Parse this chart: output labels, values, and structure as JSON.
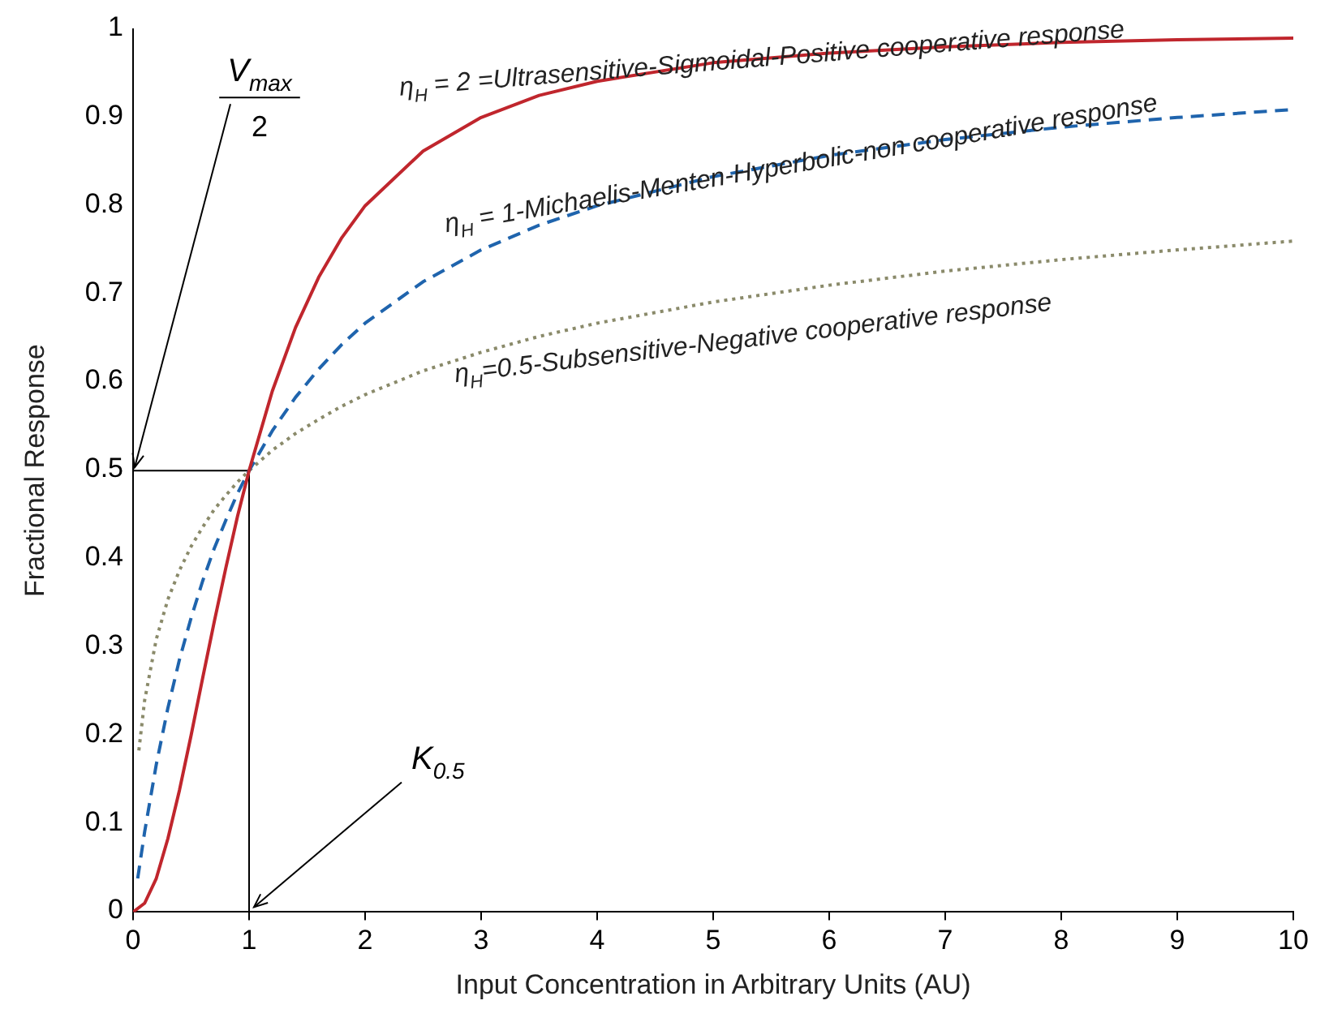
{
  "chart_data": {
    "type": "line",
    "xlabel": "Input Concentration in Arbitrary Units (AU)",
    "ylabel": "Fractional Response",
    "xlim": [
      0,
      10
    ],
    "xticks": [
      0,
      1,
      2,
      3,
      4,
      5,
      6,
      7,
      8,
      9,
      10
    ],
    "ylim": [
      0,
      1
    ],
    "yticks": [
      0,
      0.1,
      0.2,
      0.3,
      0.4,
      0.5,
      0.6,
      0.7,
      0.8,
      0.9,
      1
    ],
    "grid": false,
    "legend": false,
    "marker": "none",
    "series": [
      {
        "name": "η$_{H}$ = 2 =Ultrasensitive-Sigmoidal-Positive cooperative response",
        "color": "#c0262d",
        "line_style": "solid",
        "x": [
          0,
          0.1,
          0.2,
          0.3,
          0.4,
          0.5,
          0.6,
          0.7,
          0.8,
          0.9,
          1,
          1.2,
          1.4,
          1.6,
          1.8,
          2,
          2.5,
          3,
          3.5,
          4,
          5,
          6,
          7,
          8,
          9,
          10
        ],
        "values": [
          0,
          0.01,
          0.038,
          0.083,
          0.138,
          0.2,
          0.265,
          0.329,
          0.39,
          0.448,
          0.5,
          0.59,
          0.662,
          0.719,
          0.764,
          0.8,
          0.862,
          0.9,
          0.925,
          0.941,
          0.962,
          0.973,
          0.98,
          0.985,
          0.988,
          0.99
        ]
      },
      {
        "name": "η$_{H}$ = 1-Michaelis-Menten-Hyperbolic-non cooperative response",
        "color": "#1f64ad",
        "line_style": "dashed",
        "x": [
          0.04,
          0.1,
          0.2,
          0.3,
          0.4,
          0.5,
          0.6,
          0.7,
          0.8,
          0.9,
          1,
          1.2,
          1.4,
          1.6,
          1.8,
          2,
          2.5,
          3,
          3.5,
          4,
          5,
          6,
          7,
          8,
          9,
          10
        ],
        "values": [
          0.038,
          0.091,
          0.167,
          0.231,
          0.286,
          0.333,
          0.375,
          0.412,
          0.444,
          0.474,
          0.5,
          0.545,
          0.583,
          0.615,
          0.643,
          0.667,
          0.714,
          0.75,
          0.778,
          0.8,
          0.833,
          0.857,
          0.875,
          0.889,
          0.9,
          0.909
        ]
      },
      {
        "name": "η$_{H}$=0.5-Subsensitive-Negative cooperative response",
        "color": "#8a8a6a",
        "line_style": "dotted",
        "x": [
          0.05,
          0.1,
          0.2,
          0.3,
          0.4,
          0.5,
          0.6,
          0.7,
          0.8,
          0.9,
          1,
          1.2,
          1.4,
          1.6,
          1.8,
          2,
          2.5,
          3,
          3.5,
          4,
          5,
          6,
          7,
          8,
          9,
          10
        ],
        "values": [
          0.183,
          0.24,
          0.309,
          0.354,
          0.387,
          0.414,
          0.436,
          0.456,
          0.472,
          0.487,
          0.5,
          0.523,
          0.542,
          0.558,
          0.573,
          0.586,
          0.613,
          0.634,
          0.652,
          0.667,
          0.691,
          0.71,
          0.726,
          0.739,
          0.75,
          0.76
        ]
      },
      {
        "color": "#000000",
        "line_style": "solid",
        "x": [
          0,
          1,
          1
        ],
        "values": [
          0.5,
          0.5,
          0
        ]
      }
    ],
    "annotations": [
      {
        "text": "K$_{0.5}$",
        "x": 1,
        "y": 0
      },
      {
        "text": "V$_{max}$",
        "x": 0,
        "y": 0.5
      },
      "2"
    ]
  }
}
